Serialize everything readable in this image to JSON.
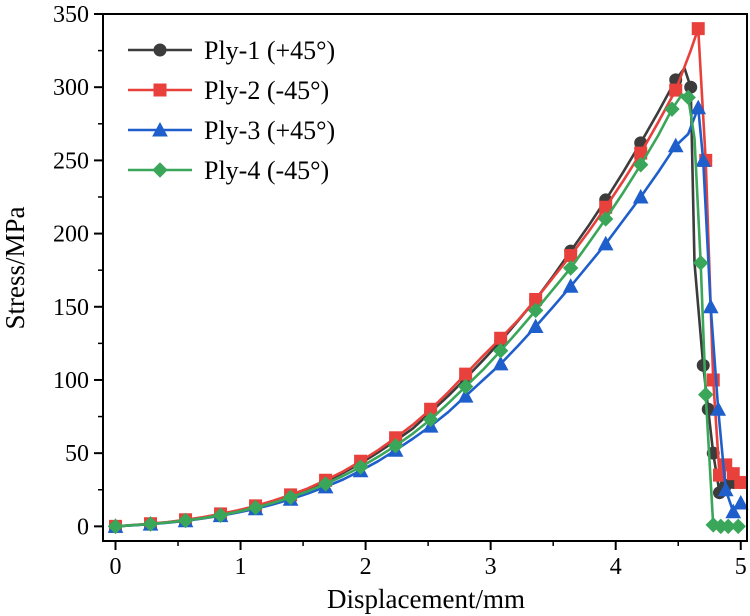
{
  "chart_data": {
    "type": "line",
    "title": "",
    "xlabel": "Displacement/mm",
    "ylabel": "Stress/MPa",
    "xlim": [
      -0.1,
      5.05
    ],
    "ylim": [
      -10,
      350
    ],
    "xticks": [
      0,
      1,
      2,
      3,
      4,
      5
    ],
    "yticks": [
      0,
      50,
      100,
      150,
      200,
      250,
      300,
      350
    ],
    "xtick_labels": [
      "0",
      "1",
      "2",
      "3",
      "4",
      "5"
    ],
    "ytick_labels": [
      "0",
      "50",
      "100",
      "150",
      "200",
      "250",
      "300",
      "350"
    ],
    "grid": false,
    "legend_position": "top-left",
    "series": [
      {
        "name": "Ply-1 (+45°)",
        "color": "#3c3c3c",
        "marker": "circle",
        "x": [
          0,
          0.14,
          0.28,
          0.42,
          0.56,
          0.7,
          0.84,
          0.98,
          1.12,
          1.26,
          1.4,
          1.54,
          1.68,
          1.82,
          1.96,
          2.1,
          2.24,
          2.38,
          2.52,
          2.66,
          2.8,
          2.94,
          3.08,
          3.22,
          3.36,
          3.5,
          3.64,
          3.78,
          3.92,
          4.06,
          4.2,
          4.34,
          4.48,
          4.55,
          4.6,
          4.63,
          4.7,
          4.74,
          4.78,
          4.83,
          4.88,
          4.94,
          5.0
        ],
        "y": [
          0,
          0.8,
          1.7,
          2.8,
          4.2,
          6,
          8,
          10.5,
          13.5,
          17,
          21,
          25.5,
          30.5,
          36.5,
          43,
          50.5,
          58.5,
          67,
          78,
          89,
          101,
          113.5,
          126.5,
          140.5,
          155,
          171,
          188,
          205,
          223,
          242,
          262,
          283,
          305,
          313,
          300,
          180,
          110,
          80,
          50,
          23,
          28,
          30,
          30
        ]
      },
      {
        "name": "Ply-2 (-45°)",
        "color": "#e8413c",
        "marker": "square",
        "x": [
          0,
          0.14,
          0.28,
          0.42,
          0.56,
          0.7,
          0.84,
          0.98,
          1.12,
          1.26,
          1.4,
          1.54,
          1.68,
          1.82,
          1.96,
          2.1,
          2.24,
          2.38,
          2.52,
          2.66,
          2.8,
          2.94,
          3.08,
          3.22,
          3.36,
          3.5,
          3.64,
          3.78,
          3.92,
          4.06,
          4.2,
          4.34,
          4.48,
          4.6,
          4.66,
          4.72,
          4.78,
          4.83,
          4.88,
          4.94,
          5.0
        ],
        "y": [
          0,
          0.9,
          1.8,
          3,
          4.5,
          6.3,
          8.5,
          11,
          14,
          17.5,
          21.5,
          26,
          31.5,
          37.5,
          44.5,
          52,
          60.5,
          69.5,
          80,
          91.5,
          104,
          116.5,
          128.5,
          141,
          155,
          170,
          185,
          201,
          218,
          236,
          255,
          276,
          298,
          325,
          340,
          250,
          100,
          35,
          42,
          36,
          30
        ]
      },
      {
        "name": "Ply-3 (+45°)",
        "color": "#1f5fcc",
        "marker": "triangle",
        "x": [
          0,
          0.14,
          0.28,
          0.42,
          0.56,
          0.7,
          0.84,
          0.98,
          1.12,
          1.26,
          1.4,
          1.54,
          1.68,
          1.82,
          1.96,
          2.1,
          2.24,
          2.38,
          2.52,
          2.66,
          2.8,
          2.94,
          3.08,
          3.22,
          3.36,
          3.5,
          3.64,
          3.78,
          3.92,
          4.06,
          4.2,
          4.34,
          4.48,
          4.58,
          4.66,
          4.7,
          4.76,
          4.82,
          4.88,
          4.94,
          5.0
        ],
        "y": [
          0,
          0.7,
          1.5,
          2.5,
          3.8,
          5.4,
          7.3,
          9.5,
          12,
          15,
          18.5,
          22.5,
          27,
          32,
          38,
          44.5,
          52,
          60,
          68.5,
          78,
          89,
          100,
          111,
          123.5,
          136.5,
          150,
          164,
          178.5,
          193,
          209,
          225,
          242,
          260,
          268,
          286,
          250,
          150,
          80,
          25,
          10,
          16
        ]
      },
      {
        "name": "Ply-4 (-45°)",
        "color": "#3aa65a",
        "marker": "diamond",
        "x": [
          0,
          0.14,
          0.28,
          0.42,
          0.56,
          0.7,
          0.84,
          0.98,
          1.12,
          1.26,
          1.4,
          1.54,
          1.68,
          1.82,
          1.96,
          2.1,
          2.24,
          2.38,
          2.52,
          2.66,
          2.8,
          2.94,
          3.08,
          3.22,
          3.36,
          3.5,
          3.64,
          3.78,
          3.92,
          4.06,
          4.2,
          4.34,
          4.45,
          4.53,
          4.58,
          4.63,
          4.68,
          4.72,
          4.78,
          4.84,
          4.9,
          4.98
        ],
        "y": [
          0,
          0.8,
          1.6,
          2.7,
          4,
          5.6,
          7.6,
          10,
          12.8,
          16,
          19.8,
          24,
          29,
          34.5,
          40.5,
          47.5,
          55,
          63.5,
          73,
          84,
          95.5,
          107,
          120,
          133.5,
          147.5,
          162,
          176.5,
          193,
          210,
          228,
          247,
          267,
          285,
          295,
          293,
          265,
          180,
          90,
          1,
          0,
          0,
          0
        ]
      }
    ]
  }
}
